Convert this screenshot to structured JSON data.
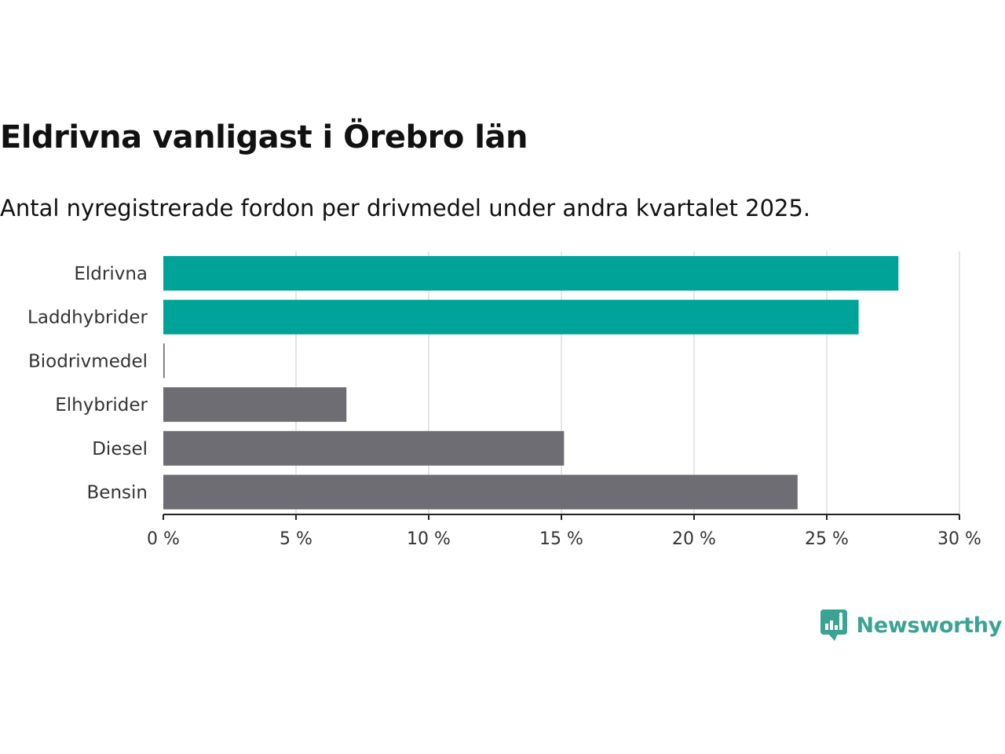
{
  "title": "Eldrivna vanligast i Örebro län",
  "subtitle": "Antal nyregistrerade fordon per drivmedel under andra kvartalet 2025.",
  "brand": {
    "name": "Newsworthy",
    "icon": "newsworthy-logo-icon",
    "color": "#3aa394"
  },
  "colors": {
    "highlight": "#00a398",
    "neutral": "#6e6d74",
    "axis": "#222222",
    "grid": "#dddddd"
  },
  "chart_data": {
    "type": "bar",
    "orientation": "horizontal",
    "categories": [
      "Eldrivna",
      "Laddhybrider",
      "Biodrivmedel",
      "Elhybrider",
      "Diesel",
      "Bensin"
    ],
    "values": [
      27.7,
      26.2,
      0.05,
      6.9,
      15.1,
      23.9
    ],
    "highlight": [
      true,
      true,
      false,
      false,
      false,
      false
    ],
    "xlim": [
      0,
      30
    ],
    "xticks": [
      0,
      5,
      10,
      15,
      20,
      25,
      30
    ],
    "xtick_labels": [
      "0 %",
      "5 %",
      "10 %",
      "15 %",
      "20 %",
      "25 %",
      "30 %"
    ],
    "grid": true,
    "legend": "none"
  }
}
